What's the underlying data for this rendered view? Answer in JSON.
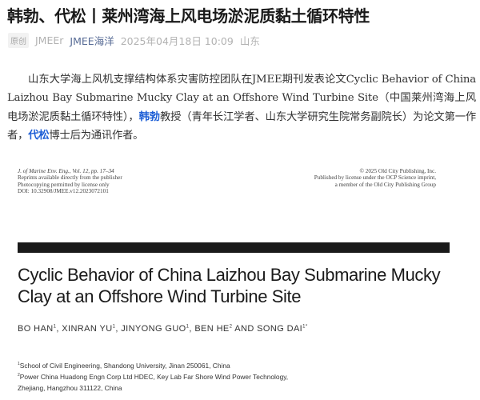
{
  "article": {
    "title": "韩勃、代松丨莱州湾海上风电场淤泥质黏土循环特性",
    "original_badge": "原创",
    "author": "JMEEr",
    "account": "JMEE海洋",
    "datetime": "2025年04月18日 10:09",
    "location": "山东"
  },
  "body": {
    "p1_a": "山东大学海上风机支撑结构体系灾害防控团队在JMEE期刊发表论文Cyclic Behavior of China Laizhou Bay Submarine Mucky Clay at an Offshore Wind Turbine Site（中国莱州湾海上风电场淤泥质黏土循环特性），",
    "p1_name1": "韩勃",
    "p1_b": "教授（青年长江学者、山东大学研究生院常务副院长）为论文第一作者，",
    "p1_name2": "代松",
    "p1_c": "博士后为通讯作者。",
    "highlight_color": "#1e5fd6"
  },
  "paper": {
    "header_left": [
      "J. of Marine Env. Eng., Vol. 12, pp. 17–34",
      "Reprints available directly from the publisher",
      "Photocopying permitted by license only",
      "DOI: 10.32908/JMEE.v12.2023072101"
    ],
    "header_right": [
      "© 2025 Old City Publishing, Inc.",
      "Published by license under the OCP Science imprint,",
      "a member of the Old City Publishing Group"
    ],
    "title": "Cyclic Behavior of China Laizhou Bay Submarine Mucky Clay at an Offshore Wind Turbine Site",
    "authors": [
      {
        "name": "BO HAN",
        "sup": "1",
        "sep": ", "
      },
      {
        "name": "XINRAN YU",
        "sup": "1",
        "sep": ", "
      },
      {
        "name": "JINYONG GUO",
        "sup": "1",
        "sep": ", "
      },
      {
        "name": "BEN HE",
        "sup": "2",
        "sep": " AND "
      },
      {
        "name": "SONG DAI",
        "sup": "1*",
        "sep": ""
      }
    ],
    "affiliations": [
      {
        "sup": "1",
        "text": "School of Civil Engineering, Shandong University, Jinan 250061, China"
      },
      {
        "sup": "2",
        "text": "Power China Huadong Engn Corp Ltd HDEC, Key Lab Far Shore Wind Power Technology,"
      },
      {
        "sup": "",
        "text": "Zhejiang, Hangzhou 311122, China"
      }
    ]
  }
}
